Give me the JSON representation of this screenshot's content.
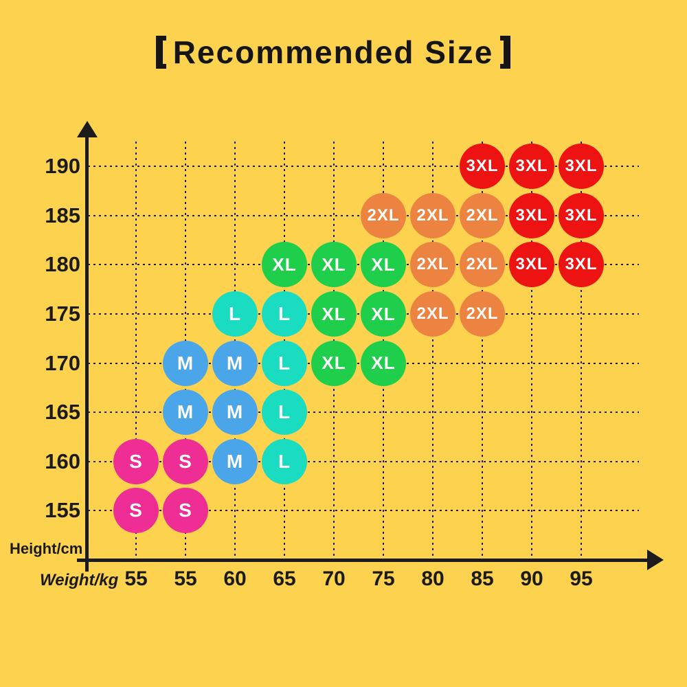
{
  "header": {
    "title": "Recommended Size",
    "title_full": "【Recommended Size】"
  },
  "axes": {
    "y_label": "Height/cm",
    "x_label": "Weight/kg"
  },
  "colors": {
    "background": "#FDD24F",
    "axis": "#1b1b1b",
    "bubble_text": "#FFFFFF"
  },
  "chart_data": {
    "type": "scatter",
    "title": "【Recommended Size】",
    "xlabel": "Weight/kg",
    "ylabel": "Height/cm",
    "grid": true,
    "x_ticks": [
      "55",
      "55",
      "60",
      "65",
      "70",
      "75",
      "80",
      "85",
      "90",
      "95"
    ],
    "y_ticks": [
      190,
      185,
      180,
      175,
      170,
      165,
      160,
      155
    ],
    "y_range": [
      155,
      190
    ],
    "sizes_legend": {
      "S": "#EE2E95",
      "M": "#4AA5E9",
      "L": "#19DCC0",
      "XL": "#1FCE4A",
      "2XL": "#ED8341",
      "3XL": "#ED1313"
    },
    "points": [
      {
        "col": 0,
        "weight": "55",
        "height": 155,
        "size": "S"
      },
      {
        "col": 1,
        "weight": "55",
        "height": 155,
        "size": "S"
      },
      {
        "col": 0,
        "weight": "55",
        "height": 160,
        "size": "S"
      },
      {
        "col": 1,
        "weight": "55",
        "height": 160,
        "size": "S"
      },
      {
        "col": 2,
        "weight": "60",
        "height": 160,
        "size": "M"
      },
      {
        "col": 3,
        "weight": "65",
        "height": 160,
        "size": "L"
      },
      {
        "col": 1,
        "weight": "55",
        "height": 165,
        "size": "M"
      },
      {
        "col": 2,
        "weight": "60",
        "height": 165,
        "size": "M"
      },
      {
        "col": 3,
        "weight": "65",
        "height": 165,
        "size": "L"
      },
      {
        "col": 1,
        "weight": "55",
        "height": 170,
        "size": "M"
      },
      {
        "col": 2,
        "weight": "60",
        "height": 170,
        "size": "M"
      },
      {
        "col": 3,
        "weight": "65",
        "height": 170,
        "size": "L"
      },
      {
        "col": 4,
        "weight": "70",
        "height": 170,
        "size": "XL"
      },
      {
        "col": 5,
        "weight": "75",
        "height": 170,
        "size": "XL"
      },
      {
        "col": 2,
        "weight": "60",
        "height": 175,
        "size": "L"
      },
      {
        "col": 3,
        "weight": "65",
        "height": 175,
        "size": "L"
      },
      {
        "col": 4,
        "weight": "70",
        "height": 175,
        "size": "XL"
      },
      {
        "col": 5,
        "weight": "75",
        "height": 175,
        "size": "XL"
      },
      {
        "col": 6,
        "weight": "80",
        "height": 175,
        "size": "2XL"
      },
      {
        "col": 7,
        "weight": "85",
        "height": 175,
        "size": "2XL"
      },
      {
        "col": 3,
        "weight": "65",
        "height": 180,
        "size": "XL"
      },
      {
        "col": 4,
        "weight": "70",
        "height": 180,
        "size": "XL"
      },
      {
        "col": 5,
        "weight": "75",
        "height": 180,
        "size": "XL"
      },
      {
        "col": 6,
        "weight": "80",
        "height": 180,
        "size": "2XL"
      },
      {
        "col": 7,
        "weight": "85",
        "height": 180,
        "size": "2XL"
      },
      {
        "col": 8,
        "weight": "90",
        "height": 180,
        "size": "3XL"
      },
      {
        "col": 9,
        "weight": "95",
        "height": 180,
        "size": "3XL"
      },
      {
        "col": 5,
        "weight": "75",
        "height": 185,
        "size": "2XL"
      },
      {
        "col": 6,
        "weight": "80",
        "height": 185,
        "size": "2XL"
      },
      {
        "col": 7,
        "weight": "85",
        "height": 185,
        "size": "2XL"
      },
      {
        "col": 8,
        "weight": "90",
        "height": 185,
        "size": "3XL"
      },
      {
        "col": 9,
        "weight": "95",
        "height": 185,
        "size": "3XL"
      },
      {
        "col": 7,
        "weight": "85",
        "height": 190,
        "size": "3XL"
      },
      {
        "col": 8,
        "weight": "90",
        "height": 190,
        "size": "3XL"
      },
      {
        "col": 9,
        "weight": "95",
        "height": 190,
        "size": "3XL"
      }
    ]
  }
}
